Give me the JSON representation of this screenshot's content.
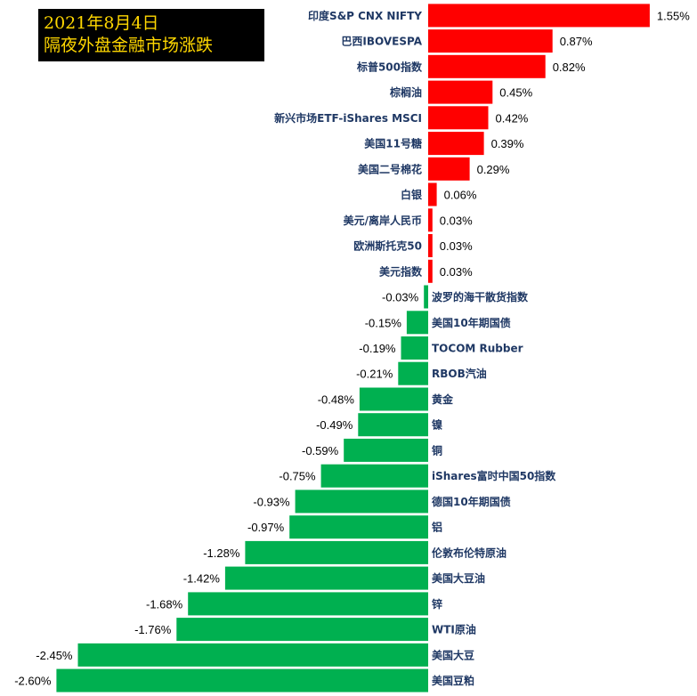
{
  "title": {
    "line1": "2021年8月4日",
    "line2": "隔夜外盘金融市场涨跌"
  },
  "colors": {
    "positive": "#ff0000",
    "negative": "#00b050",
    "title_bg": "#000000",
    "title_text": "#ffd700",
    "category_text": "#1f3864"
  },
  "chart_data": {
    "type": "bar",
    "orientation": "horizontal",
    "categories": [
      "印度S&P CNX NIFTY",
      "巴西IBOVESPA",
      "标普500指数",
      "棕榈油",
      "新兴市场ETF-iShares MSCI",
      "美国11号糖",
      "美国二号棉花",
      "白银",
      "美元/离岸人民币",
      "欧洲斯托克50",
      "美元指数",
      "波罗的海干散货指数",
      "美国10年期国债",
      "TOCOM Rubber",
      "RBOB汽油",
      "黄金",
      "镍",
      "铜",
      "iShares富时中国50指数",
      "德国10年期国债",
      "铝",
      "伦敦布伦特原油",
      "美国大豆油",
      "锌",
      "WTI原油",
      "美国大豆",
      "美国豆粕"
    ],
    "values": [
      1.55,
      0.87,
      0.82,
      0.45,
      0.42,
      0.39,
      0.29,
      0.06,
      0.03,
      0.03,
      0.03,
      -0.03,
      -0.15,
      -0.19,
      -0.21,
      -0.48,
      -0.49,
      -0.59,
      -0.75,
      -0.93,
      -0.97,
      -1.28,
      -1.42,
      -1.68,
      -1.76,
      -2.45,
      -2.6
    ],
    "value_labels": [
      "1.55%",
      "0.87%",
      "0.82%",
      "0.45%",
      "0.42%",
      "0.39%",
      "0.29%",
      "0.06%",
      "0.03%",
      "0.03%",
      "0.03%",
      "-0.03%",
      "-0.15%",
      "-0.19%",
      "-0.21%",
      "-0.48%",
      "-0.49%",
      "-0.59%",
      "-0.75%",
      "-0.93%",
      "-0.97%",
      "-1.28%",
      "-1.42%",
      "-1.68%",
      "-1.76%",
      "-2.45%",
      "-2.60%"
    ],
    "unit": "%",
    "xlim": [
      -2.6,
      1.55
    ],
    "grid": false,
    "legend": "none"
  }
}
